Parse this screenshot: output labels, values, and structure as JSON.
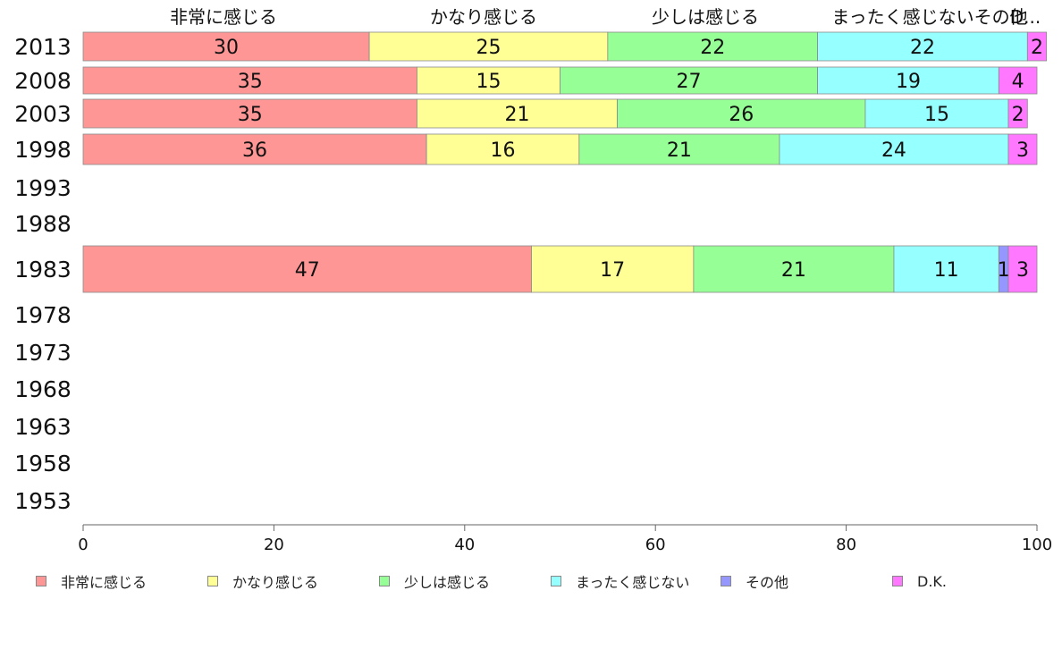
{
  "chart_data": {
    "type": "bar",
    "orientation": "horizontal",
    "stacked": true,
    "categories": [
      "2013",
      "2008",
      "2003",
      "1998",
      "1993",
      "1988",
      "1983",
      "1978",
      "1973",
      "1968",
      "1963",
      "1958",
      "1953"
    ],
    "series": [
      {
        "name": "非常に感じる",
        "color": "#ff9696",
        "values": [
          30,
          35,
          35,
          36,
          null,
          null,
          47,
          null,
          null,
          null,
          null,
          null,
          null
        ]
      },
      {
        "name": "かなり感じる",
        "color": "#ffff96",
        "values": [
          25,
          15,
          21,
          16,
          null,
          null,
          17,
          null,
          null,
          null,
          null,
          null,
          null
        ]
      },
      {
        "name": "少しは感じる",
        "color": "#96ff96",
        "values": [
          22,
          27,
          26,
          21,
          null,
          null,
          21,
          null,
          null,
          null,
          null,
          null,
          null
        ]
      },
      {
        "name": "まったく感じない",
        "color": "#96ffff",
        "values": [
          22,
          19,
          15,
          24,
          null,
          null,
          11,
          null,
          null,
          null,
          null,
          null,
          null
        ]
      },
      {
        "name": "その他",
        "color": "#9696ff",
        "values": [
          0,
          0,
          0,
          0,
          null,
          null,
          1,
          null,
          null,
          null,
          null,
          null,
          null
        ]
      },
      {
        "name": "D.K.",
        "color": "#ff78ff",
        "values": [
          2,
          4,
          2,
          3,
          null,
          null,
          3,
          null,
          null,
          null,
          null,
          null,
          null
        ]
      }
    ],
    "top_labels": [
      "非常に感じる",
      "かなり感じる",
      "少しは感じる",
      "まったく感じないその他",
      "D..."
    ],
    "xlim": [
      0,
      100
    ],
    "xticks": [
      0,
      20,
      40,
      60,
      80,
      100
    ],
    "legend_position": "bottom",
    "grid": false
  }
}
